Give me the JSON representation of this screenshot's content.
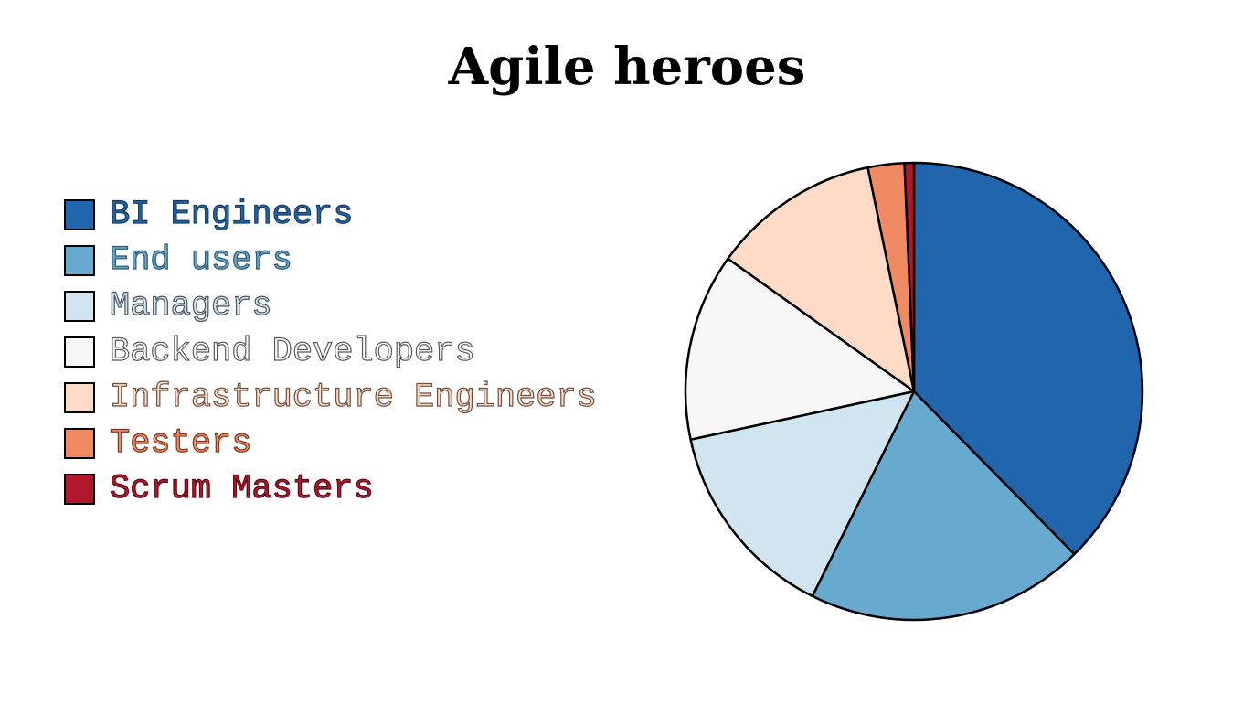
{
  "chart_data": {
    "type": "pie",
    "title": "Agile heroes",
    "categories": [
      "BI Engineers",
      "End users",
      "Managers",
      "Backend Developers",
      "Infrastructure Engineers",
      "Testers",
      "Scrum Masters"
    ],
    "values": [
      39.5,
      20.7,
      15.0,
      13.9,
      12.5,
      2.7,
      0.7
    ],
    "colors": [
      "#2166ac",
      "#67a9cf",
      "#d1e5f0",
      "#f7f7f7",
      "#fddbc7",
      "#ef8a62",
      "#b2182b"
    ],
    "legend_text_colors": [
      "#1a3a5c",
      "#2f5670",
      "#4a5560",
      "#5a5a5a",
      "#6a5040",
      "#7a3a22",
      "#5a0c16"
    ],
    "start_angle_deg": 90,
    "direction": "clockwise",
    "legend_position": "left"
  }
}
